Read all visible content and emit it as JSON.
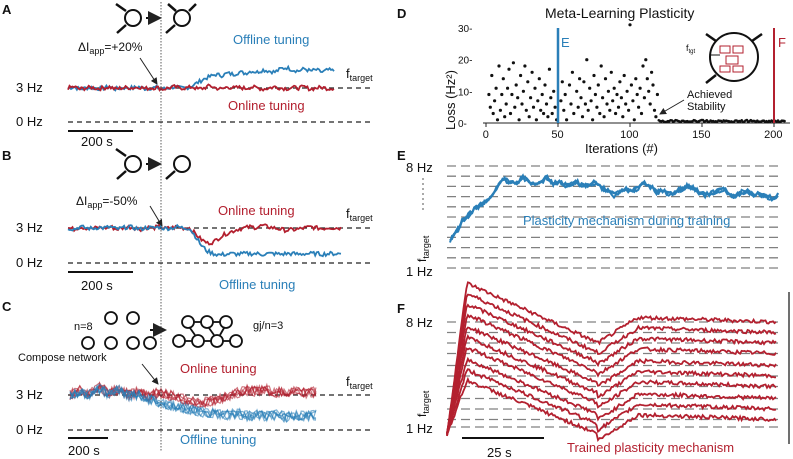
{
  "colors": {
    "offline": "#2a7fb8",
    "online": "#b3202f",
    "ref": "#222222",
    "grid": "#808080"
  },
  "panel_labels": {
    "A": "A",
    "B": "B",
    "C": "C",
    "D": "D",
    "E": "E",
    "F": "F"
  },
  "chart_data": [
    {
      "panel": "A",
      "type": "line",
      "ylabels": [
        "3 Hz",
        "0 Hz"
      ],
      "ref_label": "f",
      "ref_sub": "target",
      "scalebar": "200 s",
      "annotation": "ΔI",
      "annotation_sub": "app",
      "annotation_tail": "=+20%",
      "series": [
        {
          "name": "Offline tuning",
          "values": [
            3.0,
            3.1,
            2.9,
            3.0,
            3.05,
            2.95,
            3.0,
            3.1,
            2.9,
            3.0,
            3.05,
            3.0,
            3.1,
            2.95,
            3.0,
            3.05,
            2.9,
            3.0,
            3.1,
            3.0,
            3.0,
            3.2,
            3.5,
            3.8,
            4.0,
            4.2,
            4.1,
            4.3,
            4.2,
            4.4,
            4.3,
            4.5,
            4.4,
            4.6,
            4.5,
            4.4,
            4.7,
            4.8,
            4.6,
            4.5,
            4.7,
            4.5,
            4.6,
            4.4,
            4.6,
            4.5
          ]
        },
        {
          "name": "Online tuning",
          "values": [
            3.0,
            3.1,
            2.9,
            3.0,
            3.05,
            2.95,
            3.0,
            3.1,
            2.9,
            3.0,
            3.05,
            3.0,
            3.1,
            2.95,
            3.0,
            3.05,
            2.9,
            3.0,
            3.1,
            3.0,
            3.0,
            3.1,
            2.9,
            3.0,
            3.2,
            3.0,
            2.9,
            3.1,
            3.0,
            3.05,
            2.95,
            3.1,
            3.0,
            2.9,
            3.0,
            3.1,
            3.0,
            2.95,
            3.05,
            3.0,
            3.1,
            2.9,
            3.0,
            3.05,
            2.95,
            3.0
          ]
        }
      ]
    },
    {
      "panel": "B",
      "type": "line",
      "ylabels": [
        "3 Hz",
        "0 Hz"
      ],
      "ref_label": "f",
      "ref_sub": "target",
      "scalebar": "200 s",
      "annotation": "ΔI",
      "annotation_sub": "app",
      "annotation_tail": "=-50%",
      "series": [
        {
          "name": "Online tuning",
          "values": [
            3.0,
            2.9,
            3.1,
            3.0,
            2.95,
            3.05,
            3.0,
            3.1,
            2.9,
            3.0,
            3.1,
            3.0,
            2.9,
            3.05,
            3.0,
            3.1,
            2.95,
            3.0,
            3.1,
            3.0,
            3.0,
            2.5,
            2.0,
            1.7,
            1.8,
            2.2,
            2.5,
            2.7,
            2.9,
            3.0,
            3.1,
            3.05,
            3.2,
            3.1,
            3.0,
            2.9,
            2.8,
            2.85,
            2.9,
            3.0,
            3.1,
            3.0,
            2.95,
            3.05,
            3.0,
            3.0
          ]
        },
        {
          "name": "Offline tuning",
          "values": [
            3.0,
            2.9,
            3.1,
            3.0,
            2.95,
            3.05,
            3.0,
            3.1,
            2.9,
            3.0,
            3.1,
            3.0,
            2.9,
            3.05,
            3.0,
            3.1,
            2.95,
            3.0,
            3.1,
            3.0,
            3.0,
            2.3,
            1.5,
            1.0,
            0.8,
            0.7,
            0.75,
            0.8,
            0.75,
            0.8,
            0.8,
            0.8,
            0.75,
            0.8,
            0.8,
            0.75,
            0.8,
            0.8,
            0.75,
            0.8,
            0.8,
            0.8,
            0.75,
            0.8,
            0.8,
            0.8
          ]
        }
      ]
    },
    {
      "panel": "C",
      "type": "line",
      "ylabels": [
        "3 Hz",
        "0 Hz"
      ],
      "ref_label": "f",
      "ref_sub": "target",
      "scalebar": "200 s",
      "left_label": "n=8",
      "right_label": "gj/n=3",
      "annotation": "Compose network",
      "series": [
        {
          "name": "Online tuning",
          "values": [
            3.0,
            3.4,
            3.1,
            3.6,
            3.2,
            3.5,
            3.0,
            3.3,
            2.9,
            3.2,
            3.0,
            2.8,
            2.5,
            2.3,
            2.4,
            2.6,
            2.9,
            3.2,
            3.4,
            3.3,
            3.5,
            3.2,
            3.3,
            3.4,
            3.1,
            3.3
          ]
        },
        {
          "name": "Offline tuning",
          "values": [
            3.0,
            3.3,
            3.0,
            3.5,
            3.1,
            3.4,
            2.9,
            3.1,
            2.6,
            2.4,
            2.2,
            2.0,
            1.8,
            1.6,
            1.5,
            1.4,
            1.3,
            1.4,
            1.2,
            1.3,
            1.2,
            1.3,
            1.1,
            1.3,
            1.2,
            1.3
          ]
        }
      ]
    },
    {
      "panel": "D",
      "type": "scatter",
      "title": "Meta-Learning Plasticity",
      "xlabel": "Iterations (#)",
      "ylabel": "Loss (Hz²)",
      "xlim": [
        -10,
        210
      ],
      "ylim": [
        0,
        32
      ],
      "xticks": [
        "0",
        "50",
        "100",
        "150",
        "200"
      ],
      "yticks": [
        "0-",
        "10-",
        "20-",
        "30-"
      ],
      "vlines": {
        "E": 50,
        "F": 200
      },
      "vline_labels": {
        "E": "E",
        "F": "F"
      },
      "inset_label": "f",
      "inset_sub": "tgt",
      "annotation": "Achieved Stability",
      "points": [
        [
          2,
          9
        ],
        [
          3,
          5
        ],
        [
          4,
          15
        ],
        [
          5,
          3
        ],
        [
          6,
          7
        ],
        [
          7,
          11
        ],
        [
          8,
          1
        ],
        [
          9,
          18
        ],
        [
          10,
          4
        ],
        [
          11,
          9
        ],
        [
          12,
          14
        ],
        [
          13,
          2
        ],
        [
          14,
          6
        ],
        [
          15,
          11
        ],
        [
          16,
          17
        ],
        [
          17,
          3
        ],
        [
          18,
          9
        ],
        [
          19,
          19
        ],
        [
          20,
          5
        ],
        [
          21,
          12
        ],
        [
          22,
          8
        ],
        [
          23,
          1
        ],
        [
          24,
          15
        ],
        [
          25,
          6
        ],
        [
          26,
          10
        ],
        [
          27,
          18
        ],
        [
          28,
          4
        ],
        [
          29,
          13
        ],
        [
          30,
          2
        ],
        [
          31,
          8
        ],
        [
          32,
          16
        ],
        [
          33,
          5
        ],
        [
          34,
          11
        ],
        [
          35,
          1
        ],
        [
          36,
          7
        ],
        [
          37,
          14
        ],
        [
          38,
          4
        ],
        [
          39,
          9
        ],
        [
          40,
          3
        ],
        [
          41,
          12
        ],
        [
          42,
          6
        ],
        [
          43,
          2
        ],
        [
          44,
          17
        ],
        [
          45,
          8
        ],
        [
          46,
          3
        ],
        [
          47,
          10
        ],
        [
          48,
          5
        ],
        [
          49,
          1
        ],
        [
          52,
          7
        ],
        [
          53,
          13
        ],
        [
          54,
          4
        ],
        [
          55,
          9
        ],
        [
          56,
          1
        ],
        [
          58,
          12
        ],
        [
          59,
          6
        ],
        [
          60,
          16
        ],
        [
          61,
          3
        ],
        [
          63,
          10
        ],
        [
          64,
          5
        ],
        [
          65,
          14
        ],
        [
          66,
          8
        ],
        [
          67,
          2
        ],
        [
          68,
          13
        ],
        [
          69,
          6
        ],
        [
          70,
          20
        ],
        [
          71,
          4
        ],
        [
          72,
          11
        ],
        [
          73,
          7
        ],
        [
          74,
          1
        ],
        [
          75,
          15
        ],
        [
          76,
          9
        ],
        [
          77,
          5
        ],
        [
          78,
          12
        ],
        [
          79,
          3
        ],
        [
          80,
          18
        ],
        [
          81,
          8
        ],
        [
          82,
          2
        ],
        [
          83,
          14
        ],
        [
          84,
          6
        ],
        [
          85,
          10
        ],
        [
          86,
          4
        ],
        [
          87,
          16
        ],
        [
          88,
          7
        ],
        [
          89,
          11
        ],
        [
          90,
          3
        ],
        [
          91,
          9
        ],
        [
          92,
          5
        ],
        [
          93,
          13
        ],
        [
          94,
          8
        ],
        [
          95,
          2
        ],
        [
          96,
          15
        ],
        [
          97,
          6
        ],
        [
          98,
          10
        ],
        [
          99,
          4
        ],
        [
          100,
          31
        ],
        [
          101,
          12
        ],
        [
          102,
          7
        ],
        [
          103,
          1
        ],
        [
          104,
          14
        ],
        [
          105,
          9
        ],
        [
          106,
          5
        ],
        [
          107,
          11
        ],
        [
          108,
          3
        ],
        [
          109,
          18
        ],
        [
          110,
          8
        ],
        [
          111,
          20
        ],
        [
          112,
          14
        ],
        [
          113,
          10
        ],
        [
          114,
          6
        ],
        [
          115,
          16
        ],
        [
          116,
          12
        ],
        [
          117,
          4
        ],
        [
          118,
          2
        ],
        [
          119,
          9
        ]
      ]
    },
    {
      "panel": "E",
      "type": "line",
      "ytop": "8 Hz",
      "ybottom": "1 Hz",
      "ylabel": "f",
      "ylabel_sub": "target",
      "annotation": "Plasticity mechanism during training",
      "levels": 9,
      "series": [
        {
          "name": "Plasticity mechanism during training",
          "values": [
            2.9,
            3.4,
            4.2,
            4.6,
            5.0,
            5.3,
            5.6,
            6.1,
            6.8,
            7.1,
            6.8,
            6.9,
            7.2,
            6.9,
            6.7,
            6.9,
            7.2,
            6.8,
            6.9,
            6.7,
            6.8,
            6.9,
            6.6,
            6.7,
            6.9,
            6.5,
            6.3,
            6.0,
            6.2,
            6.4,
            6.3,
            6.5,
            6.8,
            6.6,
            6.2,
            6.3,
            6.1,
            6.2,
            6.4,
            6.6,
            6.5,
            6.2,
            6.0,
            6.1,
            6.3,
            6.4,
            6.1,
            5.9,
            6.2,
            6.3,
            6.0,
            6.1,
            5.9,
            5.8,
            6.0
          ]
        }
      ]
    },
    {
      "panel": "F",
      "type": "line",
      "ytop": "8 Hz",
      "ybottom": "1 Hz",
      "ylabel": "f",
      "ylabel_sub": "target",
      "scalebar": "25 s",
      "annotation": "Trained plasticity mechanism",
      "targets": [
        8,
        7.3,
        6.6,
        5.9,
        5.1,
        4.4,
        3.7,
        2.9,
        2.2,
        1.5
      ]
    }
  ]
}
